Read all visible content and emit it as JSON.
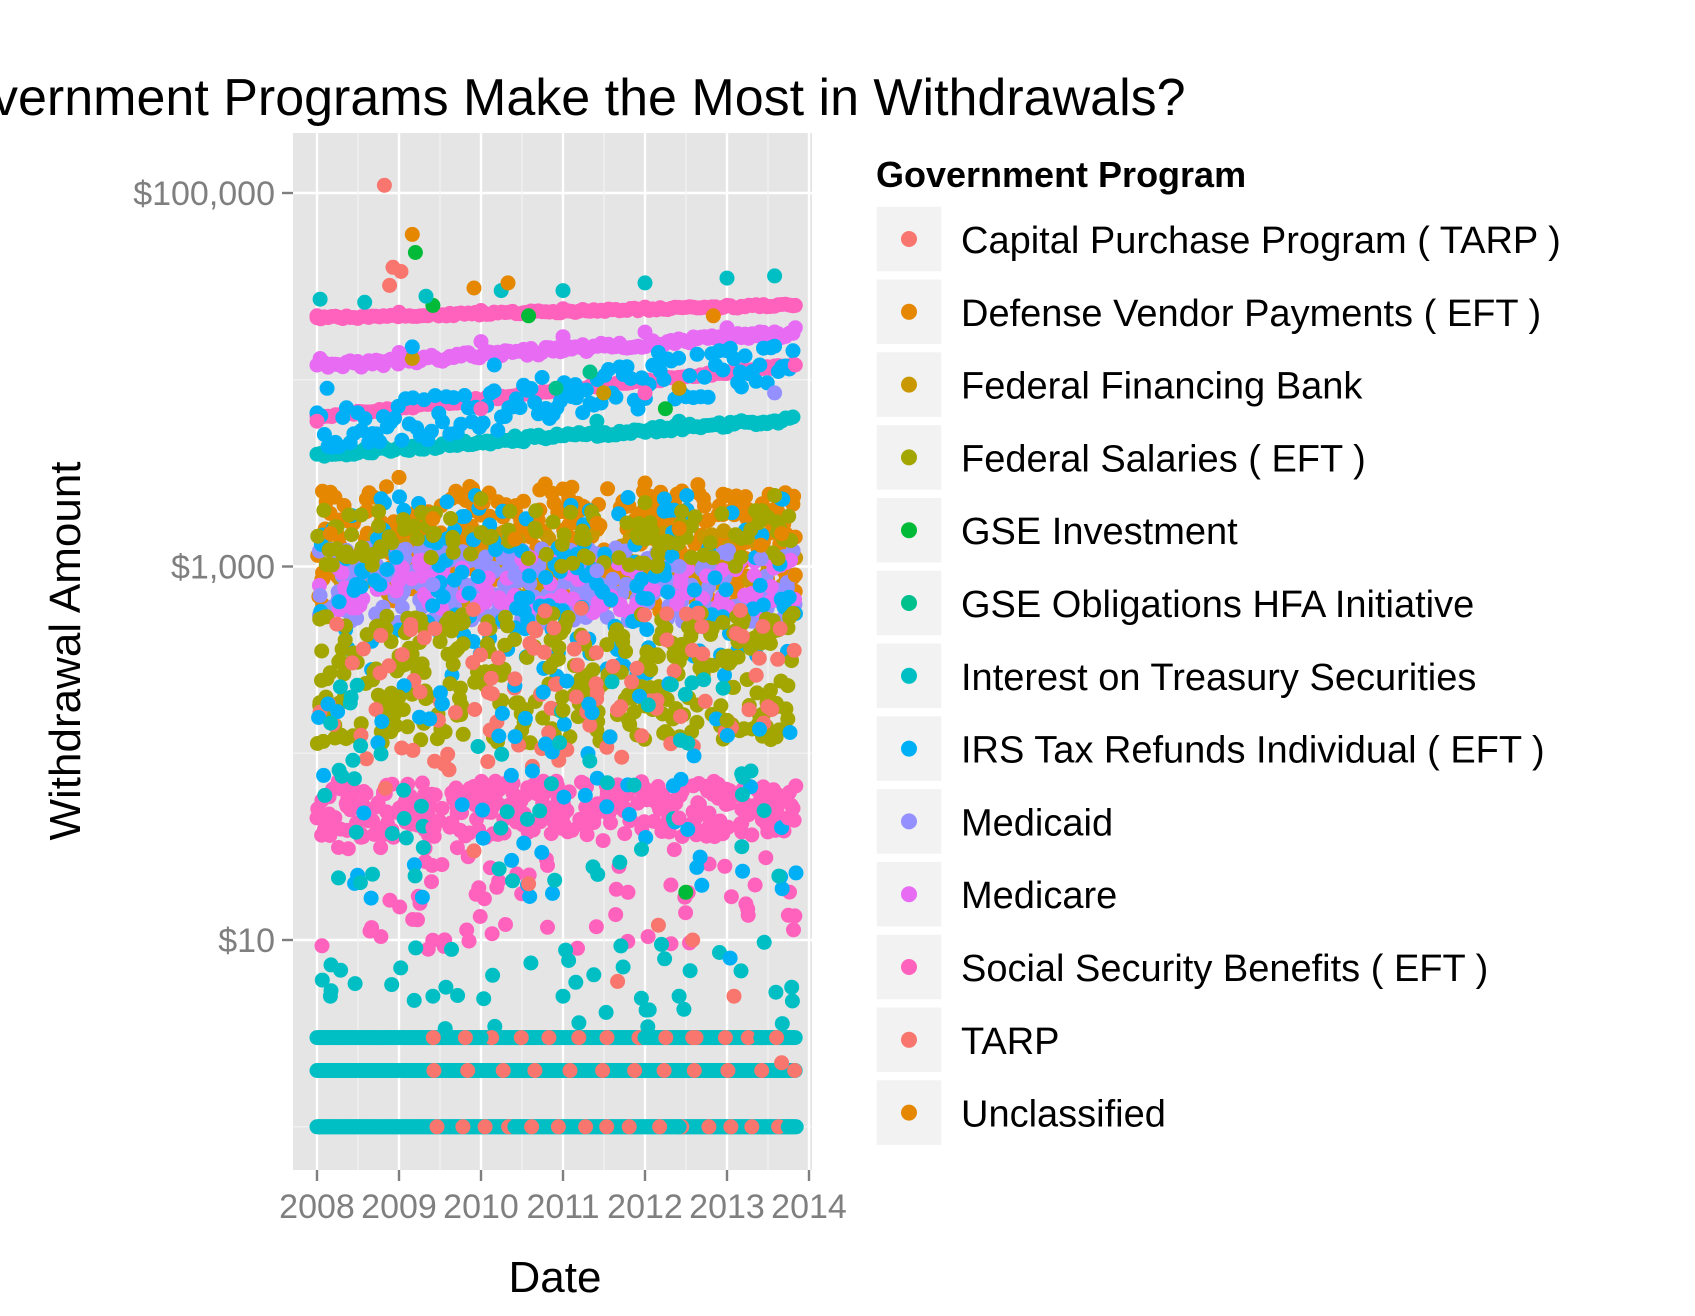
{
  "chart_data": {
    "type": "scatter",
    "title": "vernment Programs Make the Most in Withdrawals?",
    "xlabel": "Date",
    "ylabel": "Withdrawal Amount",
    "y_scale": "log10",
    "ylim": [
      0.8,
      180000
    ],
    "xlim": [
      "2007-09-15",
      "2014-01-15"
    ],
    "x_ticks": [
      "2008",
      "2009",
      "2010",
      "2011",
      "2012",
      "2013",
      "2014"
    ],
    "y_ticks": [
      {
        "value": 10,
        "label": "$10"
      },
      {
        "value": 1000,
        "label": "$1,000"
      },
      {
        "value": 100000,
        "label": "$100,000"
      }
    ],
    "grid": true,
    "panel_background": "#e5e5e5",
    "legend": {
      "title": "Government Program",
      "position": "right",
      "entries": [
        {
          "name": "Capital Purchase Program ( TARP )",
          "color": "#f8766d"
        },
        {
          "name": "Defense Vendor Payments ( EFT )",
          "color": "#e58700"
        },
        {
          "name": "Federal Financing Bank",
          "color": "#c99800"
        },
        {
          "name": "Federal Salaries ( EFT )",
          "color": "#a3a500"
        },
        {
          "name": "GSE Investment",
          "color": "#00ba38"
        },
        {
          "name": "GSE Obligations HFA Initiative",
          "color": "#00c08b"
        },
        {
          "name": "Interest on Treasury Securities",
          "color": "#00bfc4"
        },
        {
          "name": "IRS Tax Refunds Individual ( EFT )",
          "color": "#00b0f6"
        },
        {
          "name": "Medicaid",
          "color": "#9590ff"
        },
        {
          "name": "Medicare",
          "color": "#e76bf3"
        },
        {
          "name": "Social Security Benefits ( EFT )",
          "color": "#ff62bc"
        },
        {
          "name": "TARP",
          "color": "#f8766d"
        },
        {
          "name": "Unclassified",
          "color": "#e58700"
        }
      ]
    },
    "series": [
      {
        "name": "Capital Purchase Program ( TARP )",
        "points": [
          {
            "x": "2008-10-28",
            "y": 110000
          },
          {
            "x": "2008-12-05",
            "y": 40000
          },
          {
            "x": "2009-01-10",
            "y": 38000
          },
          {
            "x": "2008-11-20",
            "y": 32000
          },
          {
            "x": "2010-06-01",
            "y": 250
          },
          {
            "x": "2011-03-01",
            "y": 200
          }
        ]
      },
      {
        "name": "Defense Vendor Payments ( EFT )",
        "points": [
          {
            "x": "2008-03-01",
            "y": 2500
          },
          {
            "x": "2009-01-01",
            "y": 3000
          },
          {
            "x": "2010-01-01",
            "y": 2200
          },
          {
            "x": "2011-01-01",
            "y": 2600
          },
          {
            "x": "2012-01-01",
            "y": 2800
          },
          {
            "x": "2013-01-01",
            "y": 2400
          },
          {
            "x": "2013-09-01",
            "y": 1500
          }
        ]
      },
      {
        "name": "Federal Financing Bank",
        "points": [
          {
            "x": "2009-03-01",
            "y": 13000
          },
          {
            "x": "2011-07-01",
            "y": 8500
          },
          {
            "x": "2012-06-01",
            "y": 9000
          }
        ]
      },
      {
        "name": "Federal Salaries ( EFT )",
        "points": [
          {
            "x": "2008-02-01",
            "y": 2000
          },
          {
            "x": "2009-01-01",
            "y": 200
          },
          {
            "x": "2010-01-01",
            "y": 2300
          },
          {
            "x": "2011-01-01",
            "y": 170
          },
          {
            "x": "2012-01-01",
            "y": 2200
          },
          {
            "x": "2013-01-01",
            "y": 150
          },
          {
            "x": "2013-08-01",
            "y": 2400
          }
        ]
      },
      {
        "name": "GSE Investment",
        "points": [
          {
            "x": "2009-03-15",
            "y": 48000
          },
          {
            "x": "2009-06-01",
            "y": 25000
          },
          {
            "x": "2010-08-01",
            "y": 22000
          },
          {
            "x": "2012-04-01",
            "y": 7000
          },
          {
            "x": "2012-07-01",
            "y": 18
          }
        ]
      },
      {
        "name": "GSE Obligations HFA Initiative",
        "points": [
          {
            "x": "2010-12-01",
            "y": 9000
          },
          {
            "x": "2011-05-01",
            "y": 11000
          }
        ]
      },
      {
        "name": "Interest on Treasury Securities",
        "points": [
          {
            "x": "2008-01-15",
            "y": 27000
          },
          {
            "x": "2008-08-01",
            "y": 26000
          },
          {
            "x": "2009-05-01",
            "y": 28000
          },
          {
            "x": "2010-04-01",
            "y": 30000
          },
          {
            "x": "2011-01-01",
            "y": 30000
          },
          {
            "x": "2012-01-01",
            "y": 33000
          },
          {
            "x": "2013-01-01",
            "y": 35000
          },
          {
            "x": "2013-08-01",
            "y": 36000
          },
          {
            "x": "2010-06-01",
            "y": 5000
          },
          {
            "x": "2011-06-01",
            "y": 6000
          },
          {
            "x": "2012-06-01",
            "y": 6000
          },
          {
            "x": "2013-06-01",
            "y": 5800
          },
          {
            "x": "2008-03-01",
            "y": 5
          },
          {
            "x": "2009-06-01",
            "y": 5
          },
          {
            "x": "2011-01-01",
            "y": 5
          },
          {
            "x": "2012-06-01",
            "y": 5
          },
          {
            "x": "2008-02-01",
            "y": 3
          },
          {
            "x": "2010-01-01",
            "y": 3
          },
          {
            "x": "2012-01-01",
            "y": 3
          },
          {
            "x": "2013-06-01",
            "y": 3
          },
          {
            "x": "2008-01-15",
            "y": 1
          },
          {
            "x": "2010-06-01",
            "y": 1
          },
          {
            "x": "2012-06-01",
            "y": 1
          },
          {
            "x": "2013-10-01",
            "y": 1
          }
        ]
      },
      {
        "name": "IRS Tax Refunds Individual ( EFT )",
        "points": [
          {
            "x": "2008-02-15",
            "y": 9000
          },
          {
            "x": "2009-03-01",
            "y": 15000
          },
          {
            "x": "2010-03-01",
            "y": 12000
          },
          {
            "x": "2011-03-01",
            "y": 8000
          },
          {
            "x": "2012-03-01",
            "y": 14000
          },
          {
            "x": "2013-03-01",
            "y": 11000
          },
          {
            "x": "2013-01-15",
            "y": 8
          },
          {
            "x": "2013-09-01",
            "y": 40
          }
        ]
      },
      {
        "name": "Medicaid",
        "points": [
          {
            "x": "2008-01-15",
            "y": 700
          },
          {
            "x": "2009-06-01",
            "y": 800
          },
          {
            "x": "2010-06-01",
            "y": 900
          },
          {
            "x": "2011-06-01",
            "y": 950
          },
          {
            "x": "2012-06-01",
            "y": 1000
          },
          {
            "x": "2013-06-01",
            "y": 1100
          },
          {
            "x": "2013-08-01",
            "y": 8500
          }
        ]
      },
      {
        "name": "Medicare",
        "points": [
          {
            "x": "2008-01-15",
            "y": 13000
          },
          {
            "x": "2009-01-01",
            "y": 14000
          },
          {
            "x": "2010-01-01",
            "y": 16000
          },
          {
            "x": "2011-01-01",
            "y": 17000
          },
          {
            "x": "2012-01-01",
            "y": 18000
          },
          {
            "x": "2013-01-01",
            "y": 19000
          },
          {
            "x": "2013-11-01",
            "y": 19000
          }
        ]
      },
      {
        "name": "Social Security Benefits ( EFT )",
        "points": [
          {
            "x": "2008-01-01",
            "y": 22000
          },
          {
            "x": "2009-01-01",
            "y": 23000
          },
          {
            "x": "2010-01-01",
            "y": 23500
          },
          {
            "x": "2011-01-01",
            "y": 24000
          },
          {
            "x": "2012-01-01",
            "y": 24500
          },
          {
            "x": "2013-01-01",
            "y": 25000
          },
          {
            "x": "2013-11-01",
            "y": 25000
          },
          {
            "x": "2008-01-01",
            "y": 6000
          },
          {
            "x": "2010-01-01",
            "y": 7000
          },
          {
            "x": "2012-01-01",
            "y": 8500
          },
          {
            "x": "2013-11-01",
            "y": 12000
          },
          {
            "x": "2008-01-01",
            "y": 45
          },
          {
            "x": "2009-06-01",
            "y": 40
          },
          {
            "x": "2011-01-01",
            "y": 42
          },
          {
            "x": "2012-06-01",
            "y": 45
          },
          {
            "x": "2013-10-01",
            "y": 45
          }
        ]
      },
      {
        "name": "TARP",
        "points": [
          {
            "x": "2008-11-01",
            "y": 65
          },
          {
            "x": "2009-12-01",
            "y": 30
          },
          {
            "x": "2010-08-01",
            "y": 20
          },
          {
            "x": "2011-09-01",
            "y": 6
          },
          {
            "x": "2012-03-01",
            "y": 12
          },
          {
            "x": "2012-08-01",
            "y": 10
          },
          {
            "x": "2012-08-01",
            "y": 3
          },
          {
            "x": "2013-02-01",
            "y": 5
          },
          {
            "x": "2013-09-01",
            "y": 2.2
          }
        ]
      },
      {
        "name": "Unclassified",
        "points": [
          {
            "x": "2009-03-01",
            "y": 60000
          },
          {
            "x": "2009-12-01",
            "y": 31000
          },
          {
            "x": "2010-05-01",
            "y": 33000
          },
          {
            "x": "2012-11-01",
            "y": 22000
          },
          {
            "x": "2008-03-01",
            "y": 1500
          },
          {
            "x": "2009-06-01",
            "y": 1800
          },
          {
            "x": "2010-06-01",
            "y": 1400
          },
          {
            "x": "2011-06-01",
            "y": 1700
          },
          {
            "x": "2012-06-01",
            "y": 1600
          },
          {
            "x": "2013-06-01",
            "y": 1300
          },
          {
            "x": "2013-11-01",
            "y": 900
          }
        ]
      }
    ]
  }
}
